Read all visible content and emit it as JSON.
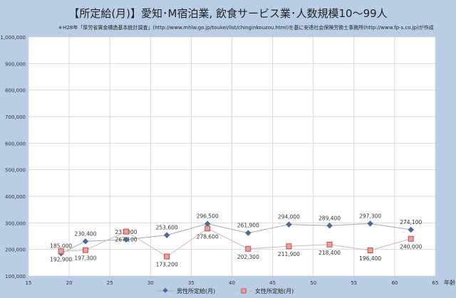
{
  "title": "【所定給(月)】愛知･M宿泊業, 飲食サービス業･人数規模10～99人",
  "note": "＊H28年「厚労省賃金構造基本統計調査」(http://www.mhlw.go.jp/toukei/list/chinginkouzou.html)を基に安達社会保険労務士事務所(http://www.fp-s.co.jp)が作成",
  "chart_data": {
    "type": "line",
    "title": "【所定給(月)】愛知･M宿泊業, 飲食サービス業･人数規模10～99人",
    "xlabel": "年齢",
    "ylabel": "",
    "xlim": [
      15,
      65
    ],
    "ylim": [
      100000,
      1000000
    ],
    "xticks": [
      15,
      20,
      25,
      30,
      35,
      40,
      45,
      50,
      55,
      60,
      65
    ],
    "yticks": [
      100000,
      200000,
      300000,
      400000,
      500000,
      600000,
      700000,
      800000,
      900000,
      1000000
    ],
    "ytick_labels": [
      "100,000",
      "200,000",
      "300,000",
      "400,000",
      "500,000",
      "600,000",
      "700,000",
      "800,000",
      "900,000",
      "1,000,000"
    ],
    "x": [
      19,
      22,
      27,
      32,
      37,
      42,
      47,
      52,
      57,
      62
    ],
    "series": [
      {
        "name": "男性所定給(月)",
        "color": "#4a6a9a",
        "values": [
          185000,
          230400,
          237000,
          253600,
          296500,
          261900,
          294000,
          289400,
          297300,
          274100
        ],
        "labels": [
          "185,000",
          "230,400",
          "237,000",
          "253,600",
          "296,500",
          "261,900",
          "294,000",
          "289,400",
          "297,300",
          "274,100"
        ]
      },
      {
        "name": "女性所定給(月)",
        "color": "#c0504d",
        "values": [
          192900,
          197300,
          267100,
          173200,
          278600,
          202300,
          211900,
          218400,
          196400,
          240000
        ],
        "labels": [
          "192,900",
          "197,300",
          "267,100",
          "173,200",
          "278,600",
          "202,300",
          "211,900",
          "218,400",
          "196,400",
          "240,000"
        ]
      }
    ],
    "grid": true,
    "legend": "bottom"
  }
}
